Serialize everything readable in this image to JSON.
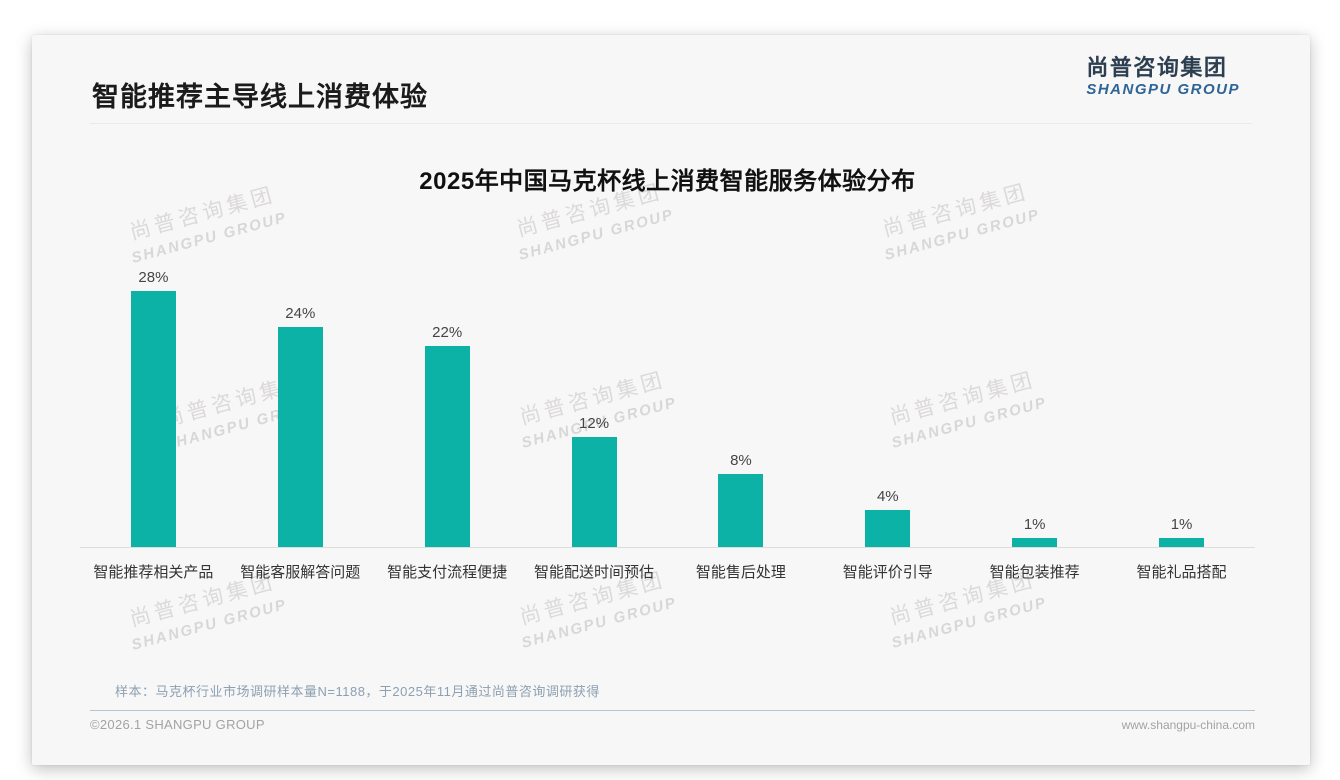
{
  "page": {
    "title": "智能推荐主导线上消费体验",
    "logo": {
      "cn": "尚普咨询集团",
      "en": "SHANGPU GROUP"
    },
    "watermark": {
      "cn": "尚普咨询集团",
      "en": "SHANGPU GROUP"
    },
    "note": "样本：马克杯行业市场调研样本量N=1188，于2025年11月通过尚普咨询调研获得",
    "footer": {
      "left": "©2026.1 SHANGPU GROUP",
      "right": "www.shangpu-china.com"
    }
  },
  "chart_data": {
    "type": "bar",
    "title": "2025年中国马克杯线上消费智能服务体验分布",
    "categories": [
      "智能推荐相关产品",
      "智能客服解答问题",
      "智能支付流程便捷",
      "智能配送时间预估",
      "智能售后处理",
      "智能评价引导",
      "智能包装推荐",
      "智能礼品搭配"
    ],
    "values": [
      28,
      24,
      22,
      12,
      8,
      4,
      1,
      1
    ],
    "value_labels": [
      "28%",
      "24%",
      "22%",
      "12%",
      "8%",
      "4%",
      "1%",
      "1%"
    ],
    "unit": "%",
    "bar_color": "#0CB2A6",
    "xlabel": "",
    "ylabel": "",
    "ylim": [
      0,
      30
    ],
    "grid": false,
    "legend": "none"
  }
}
